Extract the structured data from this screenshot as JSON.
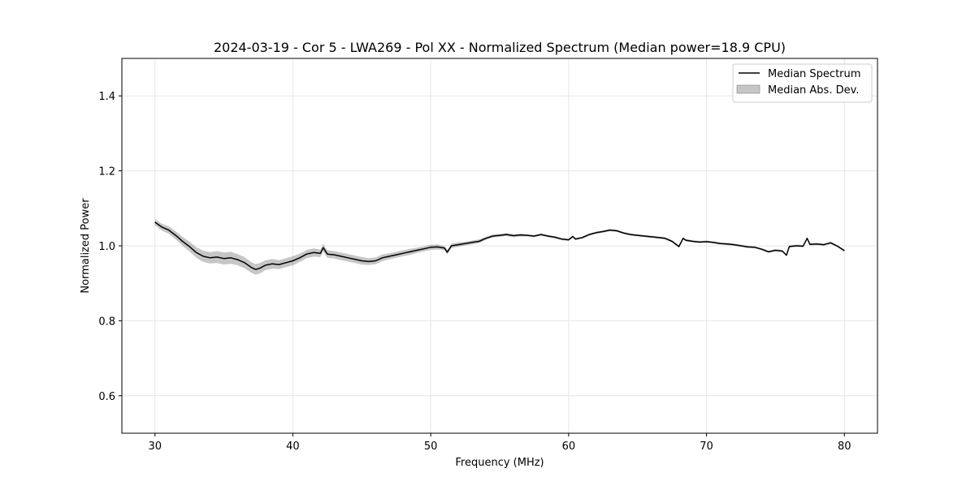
{
  "chart_data": {
    "type": "line",
    "title": "2024-03-19 - Cor 5 - LWA269 - Pol XX - Normalized Spectrum (Median power=18.9 CPU)",
    "xlabel": "Frequency (MHz)",
    "ylabel": "Normalized Power",
    "xlim": [
      27.6,
      82.4
    ],
    "ylim": [
      0.5,
      1.5
    ],
    "xticks": [
      30,
      40,
      50,
      60,
      70,
      80
    ],
    "xtick_labels": [
      "30",
      "40",
      "50",
      "60",
      "70",
      "80"
    ],
    "yticks": [
      0.6,
      0.8,
      1.0,
      1.2,
      1.4
    ],
    "ytick_labels": [
      "0.6",
      "0.8",
      "1.0",
      "1.2",
      "1.4"
    ],
    "grid": true,
    "legend_position": "upper right",
    "legend": [
      {
        "label": "Median Spectrum",
        "kind": "line",
        "color": "#000000"
      },
      {
        "label": "Median Abs. Dev.",
        "kind": "band",
        "color": "#808080"
      }
    ],
    "series": [
      {
        "name": "Median Spectrum",
        "color": "#000000",
        "x": [
          30.0,
          30.5,
          31.0,
          31.5,
          32.0,
          32.5,
          33.0,
          33.5,
          34.0,
          34.5,
          35.0,
          35.5,
          36.0,
          36.5,
          37.0,
          37.3,
          37.6,
          38.0,
          38.5,
          39.0,
          39.5,
          40.0,
          40.5,
          41.0,
          41.5,
          42.0,
          42.2,
          42.5,
          43.0,
          43.5,
          44.0,
          44.5,
          45.0,
          45.5,
          46.0,
          46.5,
          47.0,
          47.5,
          48.0,
          48.5,
          49.0,
          49.5,
          50.0,
          50.5,
          51.0,
          51.2,
          51.5,
          52.0,
          52.5,
          53.0,
          53.5,
          54.0,
          54.5,
          55.0,
          55.5,
          56.0,
          56.5,
          57.0,
          57.5,
          58.0,
          58.5,
          59.0,
          59.5,
          60.0,
          60.3,
          60.5,
          61.0,
          61.5,
          62.0,
          62.5,
          63.0,
          63.5,
          64.0,
          64.5,
          65.0,
          65.5,
          66.0,
          66.5,
          67.0,
          67.5,
          68.0,
          68.3,
          68.5,
          69.0,
          69.5,
          70.0,
          70.5,
          71.0,
          71.5,
          72.0,
          72.5,
          73.0,
          73.5,
          74.0,
          74.5,
          75.0,
          75.5,
          75.8,
          76.0,
          76.5,
          77.0,
          77.3,
          77.5,
          78.0,
          78.5,
          79.0,
          79.5,
          80.0
        ],
        "y": [
          1.063,
          1.05,
          1.042,
          1.028,
          1.012,
          0.998,
          0.982,
          0.972,
          0.968,
          0.97,
          0.966,
          0.968,
          0.963,
          0.955,
          0.942,
          0.937,
          0.94,
          0.948,
          0.952,
          0.95,
          0.955,
          0.96,
          0.968,
          0.978,
          0.982,
          0.98,
          0.995,
          0.978,
          0.976,
          0.972,
          0.968,
          0.964,
          0.96,
          0.958,
          0.96,
          0.968,
          0.972,
          0.976,
          0.98,
          0.984,
          0.988,
          0.992,
          0.996,
          0.997,
          0.994,
          0.983,
          1.0,
          1.003,
          1.006,
          1.009,
          1.012,
          1.02,
          1.026,
          1.028,
          1.03,
          1.027,
          1.029,
          1.028,
          1.026,
          1.03,
          1.026,
          1.023,
          1.018,
          1.016,
          1.025,
          1.018,
          1.022,
          1.03,
          1.035,
          1.038,
          1.042,
          1.04,
          1.034,
          1.03,
          1.028,
          1.026,
          1.024,
          1.022,
          1.02,
          1.012,
          0.998,
          1.02,
          1.015,
          1.012,
          1.01,
          1.011,
          1.009,
          1.006,
          1.005,
          1.003,
          1.0,
          0.997,
          0.996,
          0.991,
          0.984,
          0.988,
          0.986,
          0.975,
          0.998,
          1.0,
          0.999,
          1.02,
          1.004,
          1.005,
          1.003,
          1.008,
          0.999,
          0.987
        ]
      },
      {
        "name": "Median Abs. Dev.",
        "color": "#808080",
        "x": [
          30.0,
          30.5,
          31.0,
          31.5,
          32.0,
          32.5,
          33.0,
          33.5,
          34.0,
          34.5,
          35.0,
          35.5,
          36.0,
          36.5,
          37.0,
          37.3,
          37.6,
          38.0,
          38.5,
          39.0,
          39.5,
          40.0,
          40.5,
          41.0,
          41.5,
          42.0,
          42.2,
          42.5,
          43.0,
          43.5,
          44.0,
          44.5,
          45.0,
          45.5,
          46.0,
          46.5,
          47.0,
          47.5,
          48.0,
          48.5,
          49.0,
          49.5,
          50.0,
          50.5,
          51.0,
          51.2,
          51.5,
          52.0,
          52.5,
          53.0,
          53.5,
          54.0,
          54.5,
          55.0,
          55.5,
          56.0,
          56.5,
          57.0,
          57.5,
          58.0,
          58.5,
          59.0,
          59.5,
          60.0,
          60.3,
          60.5,
          61.0,
          61.5,
          62.0,
          62.5,
          63.0,
          63.5,
          64.0,
          64.5,
          65.0,
          65.5,
          66.0,
          66.5,
          67.0,
          67.5,
          68.0,
          68.3,
          68.5,
          69.0,
          69.5,
          70.0,
          70.5,
          71.0,
          71.5,
          72.0,
          72.5,
          73.0,
          73.5,
          74.0,
          74.5,
          75.0,
          75.5,
          75.8,
          76.0,
          76.5,
          77.0,
          77.3,
          77.5,
          78.0,
          78.5,
          79.0,
          79.5,
          80.0
        ],
        "dev": [
          0.008,
          0.009,
          0.01,
          0.011,
          0.012,
          0.013,
          0.014,
          0.015,
          0.015,
          0.016,
          0.016,
          0.016,
          0.015,
          0.015,
          0.014,
          0.014,
          0.014,
          0.013,
          0.013,
          0.012,
          0.012,
          0.012,
          0.011,
          0.011,
          0.011,
          0.01,
          0.01,
          0.01,
          0.01,
          0.01,
          0.01,
          0.01,
          0.01,
          0.009,
          0.009,
          0.009,
          0.008,
          0.008,
          0.008,
          0.008,
          0.007,
          0.007,
          0.007,
          0.007,
          0.006,
          0.006,
          0.006,
          0.006,
          0.005,
          0.005,
          0.005,
          0.004,
          0.004,
          0.004,
          0.004,
          0.004,
          0.004,
          0.003,
          0.003,
          0.003,
          0.003,
          0.003,
          0.003,
          0.003,
          0.003,
          0.003,
          0.003,
          0.003,
          0.003,
          0.003,
          0.003,
          0.003,
          0.003,
          0.003,
          0.003,
          0.003,
          0.003,
          0.003,
          0.003,
          0.003,
          0.003,
          0.003,
          0.003,
          0.003,
          0.003,
          0.003,
          0.003,
          0.003,
          0.003,
          0.003,
          0.003,
          0.003,
          0.003,
          0.003,
          0.003,
          0.003,
          0.003,
          0.003,
          0.003,
          0.003,
          0.003,
          0.003,
          0.003,
          0.003,
          0.003,
          0.003,
          0.003,
          0.003
        ]
      }
    ]
  }
}
